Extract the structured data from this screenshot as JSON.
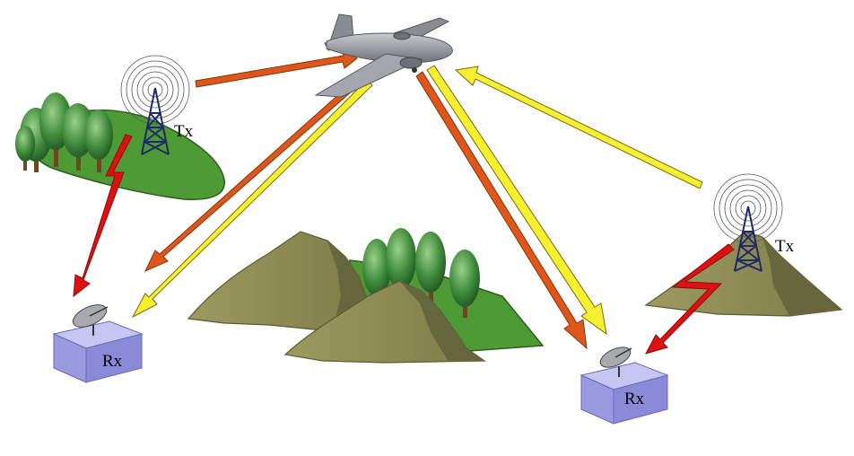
{
  "labels": {
    "tx_left": "Tx",
    "tx_right": "Tx",
    "rx_left": "Rx",
    "rx_right": "Rx"
  },
  "colors": {
    "direct_link": "#e01010",
    "orange_link": "#e0561a",
    "yellow_link": "#f6f030",
    "link_outline": "#7a5a10",
    "grass": "#4e9a34",
    "mountain": "#8c8a52",
    "mountain_shadow": "#66673c",
    "box_top": "#c6c6f2",
    "box_side": "#8a8ad8",
    "tower": "#1e2a6a",
    "aircraft": "#9a9ca4"
  },
  "icons": {
    "transmitter": "radio-tower-icon",
    "receiver": "satellite-dish-icon",
    "aircraft": "airplane-icon",
    "trees": "tree-icon",
    "mountain": "mountain-icon"
  }
}
